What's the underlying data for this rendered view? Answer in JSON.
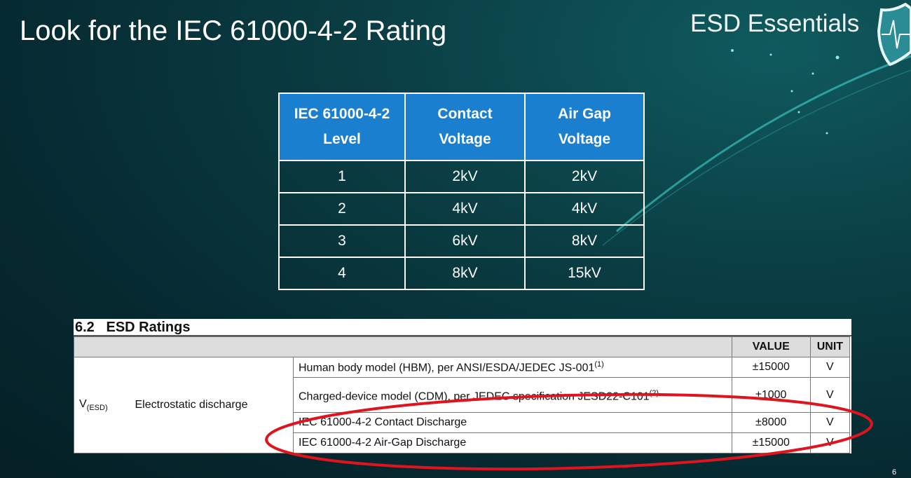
{
  "slide": {
    "title": "Look for the IEC 61000-4-2 Rating",
    "brand": "ESD Essentials",
    "page_number": "6",
    "highlight_color": "#e0141e",
    "header_color": "#1b7fd0"
  },
  "iec_table": {
    "headers": [
      [
        "IEC 61000-4-2",
        "Level"
      ],
      [
        "Contact",
        "Voltage"
      ],
      [
        "Air Gap",
        "Voltage"
      ]
    ],
    "rows": [
      [
        "1",
        "2kV",
        "2kV"
      ],
      [
        "2",
        "4kV",
        "4kV"
      ],
      [
        "3",
        "6kV",
        "8kV"
      ],
      [
        "4",
        "8kV",
        "15kV"
      ]
    ]
  },
  "datasheet": {
    "title": "6.2   ESD Ratings",
    "headers": {
      "value": "VALUE",
      "unit": "UNIT"
    },
    "symbol": "V",
    "symbol_sub": "(ESD)",
    "parameter": "Electrostatic discharge",
    "rows": [
      {
        "cond": "Human body model (HBM), per ANSI/ESDA/JEDEC JS-001",
        "note": "(1)",
        "value": "±15000",
        "unit": "V"
      },
      {
        "cond": "Charged-device model (CDM), per JEDEC specification JESD22-C101",
        "note": "(2)",
        "value": "±1000",
        "unit": "V"
      },
      {
        "cond": "IEC 61000-4-2 Contact Discharge",
        "note": "",
        "value": "±8000",
        "unit": "V"
      },
      {
        "cond": "IEC 61000-4-2 Air-Gap Discharge",
        "note": "",
        "value": "±15000",
        "unit": "V"
      }
    ]
  }
}
